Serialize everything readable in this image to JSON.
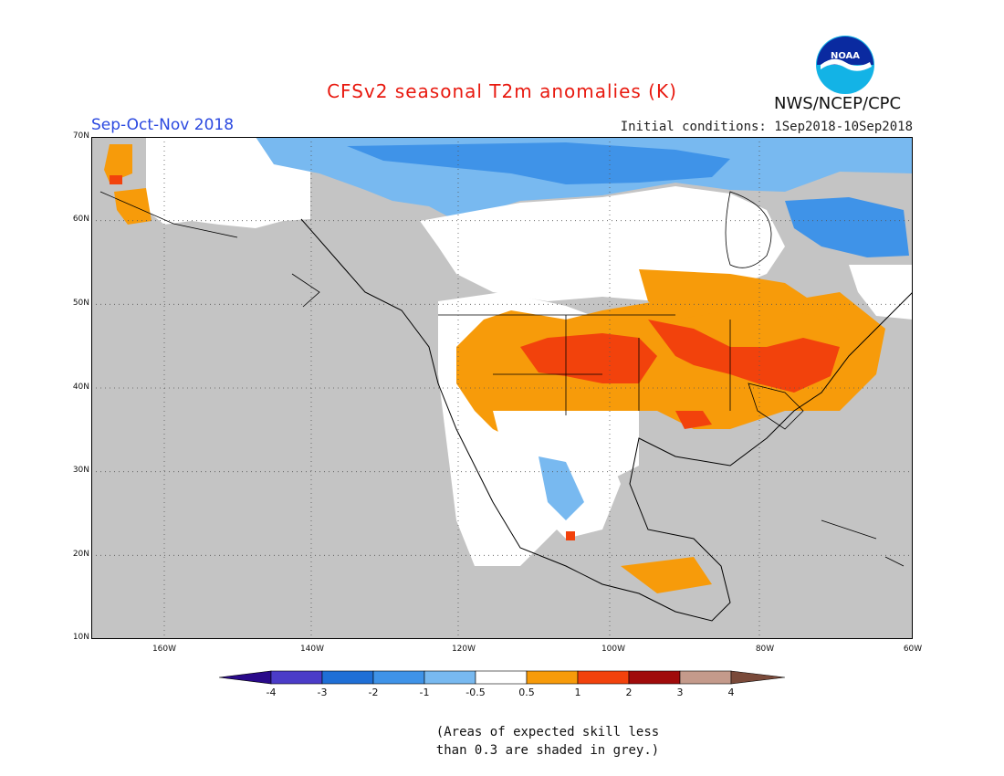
{
  "header": {
    "title": "CFSv2 seasonal T2m anomalies (K)",
    "period": "Sep-Oct-Nov 2018",
    "initial_conditions": "Initial conditions: 1Sep2018-10Sep2018",
    "agency": "NWS/NCEP/CPC",
    "logo_text": "NOAA"
  },
  "map": {
    "lat_labels": [
      "70N",
      "60N",
      "50N",
      "40N",
      "30N",
      "20N",
      "10N"
    ],
    "lon_labels": [
      "160W",
      "140W",
      "120W",
      "100W",
      "80W",
      "60W"
    ],
    "extent": {
      "lon": [
        -172,
        -60
      ],
      "lat": [
        10,
        70
      ]
    },
    "grey_means": "expected skill less than 0.3",
    "regions": {
      "cold_canada": "blue (-0.5 to -2) across northern Canada, Hudson Bay region and Labrador",
      "warm_us": "orange to red (0.5 to 2) over the western, central and northeastern United States",
      "cold_mexico": "light blue over northern Mexico",
      "warm_alaska_west": "orange over western Alaska coast"
    }
  },
  "colorbar": {
    "ticks": [
      "-4",
      "-3",
      "-2",
      "-1",
      "-0.5",
      "0.5",
      "1",
      "2",
      "3",
      "4"
    ],
    "colors": {
      "lt_-4": "#2a0a8a",
      "-4_-3": "#4b3cc8",
      "-3_-2": "#1f6fd6",
      "-2_-1": "#3f93e8",
      "-1_-0.5": "#78b9f0",
      "-0.5_0.5": "#ffffff",
      "0.5_1": "#f79b0a",
      "1_2": "#f2420c",
      "2_3": "#a00b0b",
      "3_4": "#c49a8b",
      "gt_4": "#7a4a3a"
    },
    "grey": "#c4c4c4"
  },
  "footnote": {
    "line1": "(Areas of expected skill less",
    "line2": "than 0.3 are shaded in grey.)"
  }
}
